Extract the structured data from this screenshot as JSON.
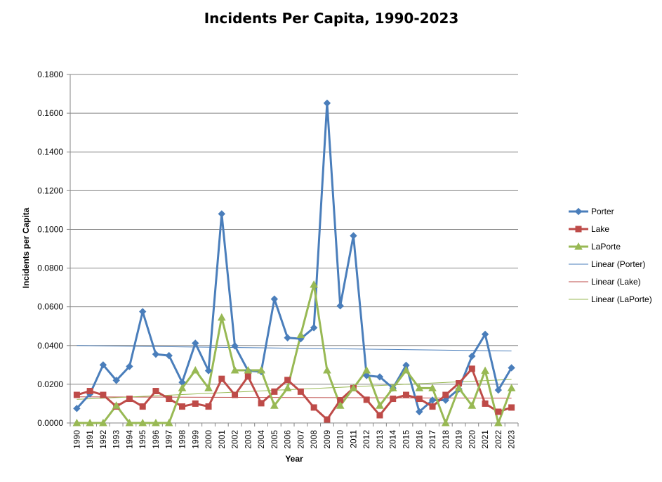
{
  "chart_data": {
    "type": "line",
    "title": "Incidents Per Capita, 1990-2023",
    "xlabel": "Year",
    "ylabel": "Incidents per Capita",
    "ylim": [
      0,
      0.18
    ],
    "yticks": [
      "0.0000",
      "0.0200",
      "0.0400",
      "0.0600",
      "0.0800",
      "0.1000",
      "0.1200",
      "0.1400",
      "0.1600",
      "0.1800"
    ],
    "grid": true,
    "legend_position": "right",
    "categories": [
      "1990",
      "1991",
      "1992",
      "1993",
      "1994",
      "1995",
      "1996",
      "1997",
      "1998",
      "1999",
      "2000",
      "2001",
      "2002",
      "2003",
      "2004",
      "2005",
      "2006",
      "2007",
      "2008",
      "2009",
      "2010",
      "2011",
      "2012",
      "2013",
      "2014",
      "2015",
      "2016",
      "2017",
      "2018",
      "2019",
      "2020",
      "2021",
      "2022",
      "2023"
    ],
    "series": [
      {
        "name": "Porter",
        "color": "#4a7ebb",
        "marker": "diamond",
        "values": [
          0.0075,
          0.015,
          0.03,
          0.022,
          0.0292,
          0.0575,
          0.0355,
          0.0348,
          0.021,
          0.0412,
          0.027,
          0.108,
          0.0398,
          0.027,
          0.0265,
          0.064,
          0.044,
          0.0435,
          0.0492,
          0.1652,
          0.0605,
          0.0967,
          0.0245,
          0.0238,
          0.018,
          0.0298,
          0.0058,
          0.0118,
          0.0118,
          0.0175,
          0.0345,
          0.0458,
          0.017,
          0.0285
        ]
      },
      {
        "name": "Lake",
        "color": "#be4b48",
        "marker": "square",
        "values": [
          0.0145,
          0.0165,
          0.0145,
          0.0085,
          0.0125,
          0.0085,
          0.0165,
          0.0125,
          0.0085,
          0.01,
          0.0085,
          0.0228,
          0.0145,
          0.024,
          0.0102,
          0.0162,
          0.0222,
          0.0162,
          0.008,
          0.0018,
          0.0118,
          0.018,
          0.012,
          0.004,
          0.0125,
          0.0145,
          0.0125,
          0.0085,
          0.0145,
          0.0205,
          0.028,
          0.01,
          0.0058,
          0.008
        ]
      },
      {
        "name": "LaPorte",
        "color": "#98b954",
        "marker": "triangle",
        "values": [
          0.0,
          0.0,
          0.0,
          0.009,
          0.0,
          0.0,
          0.0,
          0.0,
          0.018,
          0.0272,
          0.018,
          0.0545,
          0.0272,
          0.0272,
          0.0272,
          0.009,
          0.018,
          0.0455,
          0.0715,
          0.0272,
          0.009,
          0.018,
          0.0272,
          0.009,
          0.018,
          0.0272,
          0.018,
          0.018,
          0.0,
          0.018,
          0.009,
          0.027,
          0.0,
          0.018
        ]
      }
    ],
    "trendlines": [
      {
        "name": "Linear (Porter)",
        "color": "#4a7ebb",
        "start": 0.04,
        "end": 0.0372
      },
      {
        "name": "Linear (Lake)",
        "color": "#be4b48",
        "start": 0.0135,
        "end": 0.0128
      },
      {
        "name": "Linear (LaPorte)",
        "color": "#98b954",
        "start": 0.0122,
        "end": 0.0225
      }
    ]
  }
}
